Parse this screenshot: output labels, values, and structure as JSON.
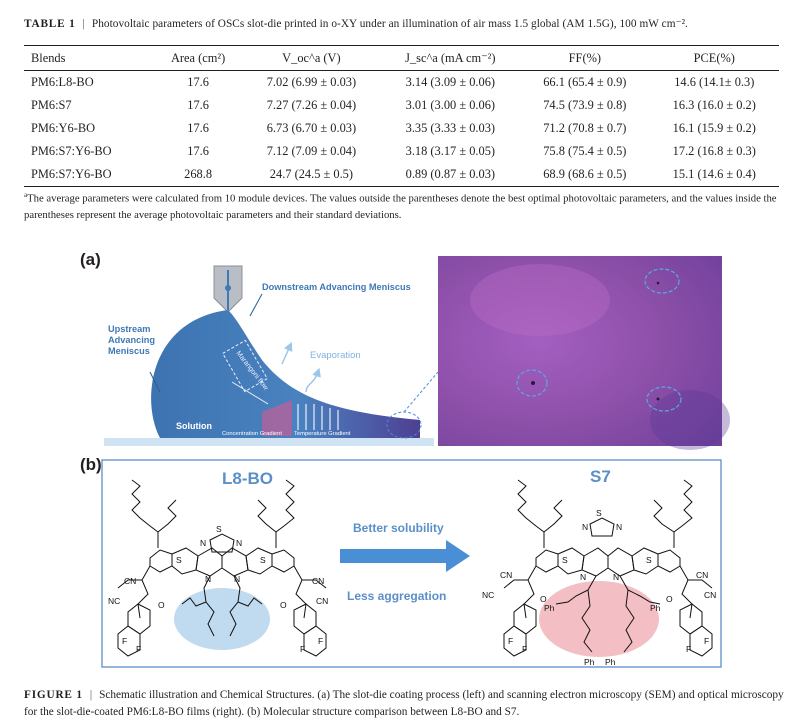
{
  "table_caption": {
    "label": "TABLE 1",
    "text": "Photovoltaic parameters of OSCs slot-die printed in o-XY under an illumination of air mass 1.5 global (AM 1.5G), 100 mW cm⁻²."
  },
  "table": {
    "headers": [
      "Blends",
      "Area (cm²)",
      "V_oc^a (V)",
      "J_sc^a (mA cm⁻²)",
      "FF(%)",
      "PCE(%)"
    ],
    "rows": [
      [
        "PM6:L8-BO",
        "17.6",
        "7.02 (6.99 ± 0.03)",
        "3.14 (3.09 ± 0.06)",
        "66.1 (65.4 ± 0.9)",
        "14.6 (14.1± 0.3)"
      ],
      [
        "PM6:S7",
        "17.6",
        "7.27 (7.26 ± 0.04)",
        "3.01 (3.00 ± 0.06)",
        "74.5 (73.9 ± 0.8)",
        "16.3 (16.0 ± 0.2)"
      ],
      [
        "PM6:Y6-BO",
        "17.6",
        "6.73 (6.70 ± 0.03)",
        "3.35 (3.33 ± 0.03)",
        "71.2 (70.8 ± 0.7)",
        "16.1 (15.9 ± 0.2)"
      ],
      [
        "PM6:S7:Y6-BO",
        "17.6",
        "7.12 (7.09 ± 0.04)",
        "3.18 (3.17 ± 0.05)",
        "75.8 (75.4 ± 0.5)",
        "17.2 (16.8 ± 0.3)"
      ],
      [
        "PM6:S7:Y6-BO",
        "268.8",
        "24.7 (24.5 ± 0.5)",
        "0.89 (0.87 ± 0.03)",
        "68.9 (68.6 ± 0.5)",
        "15.1 (14.6 ± 0.4)"
      ]
    ]
  },
  "table_footnote": "The average parameters were calculated from 10 module devices. The values outside the parentheses denote the best optimal photovoltaic parameters, and the values inside the parentheses represent the average photovoltaic parameters and their standard deviations.",
  "figure": {
    "panel_a": {
      "tag": "(a)",
      "downstream": "Downstream Advancing Meniscus",
      "upstream": [
        "Upstream",
        "Advancing",
        "Meniscus"
      ],
      "evaporation": "Evaporation",
      "marangoni": "Marangoni flow",
      "solution": "Solution",
      "conc_gradient": "Concentration Gradient",
      "temp_gradient": "Temperature Gradient"
    },
    "panel_b": {
      "tag": "(b)",
      "left_name": "L8-BO",
      "right_name": "S7",
      "arrow_top": "Better solubility",
      "arrow_bottom": "Less aggregation",
      "atoms": {
        "N": "N",
        "S": "S",
        "CN": "CN",
        "NC": "NC",
        "O": "O",
        "F": "F",
        "Ph": "Ph"
      }
    },
    "colors": {
      "blue_drop": "#3f79b6",
      "light_blue": "#a6cbea",
      "arrow_blue": "#4a8fd6",
      "pink": "#f2b8be",
      "micro_purple": "#8a4aa6",
      "label_blue": "#5a8fc8"
    }
  },
  "figure_caption": {
    "label": "FIGURE 1",
    "text": "Schematic illustration and Chemical Structures. (a) The slot-die coating process (left) and scanning electron microscopy (SEM) and optical microscopy for the slot-die-coated PM6:L8-BO films (right). (b) Molecular structure comparison between L8-BO and S7."
  }
}
